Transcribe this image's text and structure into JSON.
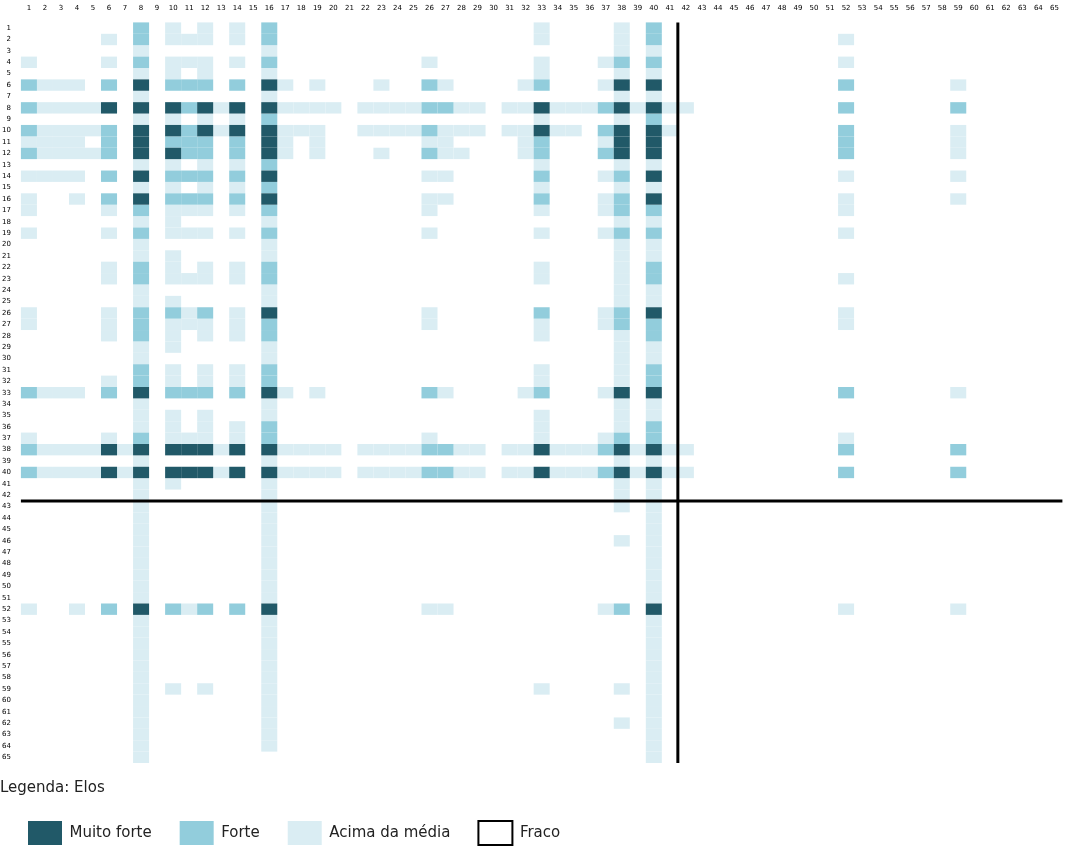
{
  "chart_data": {
    "type": "scatter",
    "legend_title": "Legenda: Elos",
    "legend": "bottom left",
    "marker": "square",
    "xlim": [
      0.5,
      65.5
    ],
    "ylim": [
      65.5,
      0.5
    ],
    "xticks": [
      1,
      2,
      3,
      4,
      5,
      6,
      7,
      8,
      9,
      10,
      11,
      12,
      13,
      14,
      15,
      16,
      17,
      18,
      19,
      20,
      21,
      22,
      23,
      24,
      25,
      26,
      27,
      28,
      29,
      30,
      31,
      32,
      33,
      34,
      35,
      36,
      37,
      38,
      39,
      40,
      41,
      42,
      43,
      44,
      45,
      46,
      47,
      48,
      49,
      50,
      51,
      52,
      53,
      54,
      55,
      56,
      57,
      58,
      59,
      60,
      61,
      62,
      63,
      64,
      65
    ],
    "yticks": [
      1,
      2,
      3,
      4,
      5,
      6,
      7,
      8,
      9,
      10,
      11,
      12,
      13,
      14,
      15,
      16,
      17,
      18,
      19,
      20,
      21,
      22,
      23,
      24,
      25,
      26,
      27,
      28,
      29,
      30,
      31,
      32,
      33,
      34,
      35,
      36,
      37,
      38,
      39,
      40,
      41,
      42,
      43,
      44,
      45,
      46,
      47,
      48,
      49,
      50,
      51,
      52,
      53,
      54,
      55,
      56,
      57,
      58,
      59,
      60,
      61,
      62,
      63,
      64,
      65
    ],
    "ref_lines": [
      {
        "axis": "x",
        "value": 41.5,
        "color": "#000000"
      },
      {
        "axis": "y",
        "value": 42.5,
        "color": "#000000"
      }
    ],
    "series": [
      {
        "name": "Muito forte",
        "color": "#215968",
        "x": [
          8,
          16,
          38,
          40,
          6,
          8,
          10,
          12,
          14,
          16,
          33,
          38,
          40,
          8,
          10,
          12,
          14,
          16,
          33,
          38,
          40,
          8,
          16,
          38,
          40,
          8,
          10,
          16,
          38,
          40,
          8,
          16,
          40,
          8,
          16,
          40,
          16,
          40,
          8,
          16,
          38,
          40,
          6,
          8,
          10,
          11,
          12,
          14,
          16,
          33,
          38,
          40,
          6,
          8,
          10,
          11,
          12,
          14,
          16,
          33,
          38,
          40,
          8,
          16,
          40
        ],
        "values": [
          6,
          6,
          6,
          6,
          8,
          8,
          8,
          8,
          8,
          8,
          8,
          8,
          8,
          10,
          10,
          10,
          10,
          10,
          10,
          10,
          10,
          11,
          11,
          11,
          11,
          12,
          12,
          12,
          12,
          12,
          14,
          14,
          14,
          16,
          16,
          16,
          26,
          26,
          33,
          33,
          33,
          33,
          38,
          38,
          38,
          38,
          38,
          38,
          38,
          38,
          38,
          38,
          40,
          40,
          40,
          40,
          40,
          40,
          40,
          40,
          40,
          40,
          52,
          52,
          52
        ]
      },
      {
        "name": "Forte",
        "color": "#92cddc",
        "x": [
          8,
          16,
          40,
          8,
          16,
          40,
          8,
          16,
          38,
          40,
          1,
          6,
          10,
          11,
          12,
          14,
          26,
          33,
          52,
          1,
          11,
          26,
          27,
          37,
          52,
          59,
          16,
          40,
          1,
          6,
          11,
          26,
          37,
          52,
          6,
          10,
          11,
          12,
          14,
          33,
          52,
          1,
          6,
          11,
          12,
          14,
          26,
          33,
          37,
          52,
          16,
          6,
          10,
          11,
          12,
          14,
          33,
          38,
          16,
          6,
          10,
          11,
          12,
          14,
          33,
          38,
          8,
          16,
          38,
          40,
          8,
          16,
          38,
          40,
          8,
          16,
          40,
          8,
          16,
          40,
          8,
          10,
          12,
          33,
          38,
          8,
          16,
          38,
          40,
          8,
          16,
          40,
          8,
          16,
          40,
          8,
          16,
          40,
          1,
          6,
          10,
          11,
          12,
          14,
          26,
          33,
          52,
          16,
          40,
          8,
          16,
          38,
          40,
          1,
          26,
          27,
          37,
          52,
          59,
          1,
          26,
          27,
          37,
          52,
          59,
          6,
          10,
          12,
          14,
          38
        ],
        "values": [
          1,
          1,
          1,
          2,
          2,
          2,
          4,
          4,
          4,
          4,
          6,
          6,
          6,
          6,
          6,
          6,
          6,
          6,
          6,
          8,
          8,
          8,
          8,
          8,
          8,
          8,
          9,
          9,
          10,
          10,
          10,
          10,
          10,
          10,
          11,
          11,
          11,
          11,
          11,
          11,
          11,
          12,
          12,
          12,
          12,
          12,
          12,
          12,
          12,
          12,
          13,
          14,
          14,
          14,
          14,
          14,
          14,
          14,
          15,
          16,
          16,
          16,
          16,
          16,
          16,
          16,
          17,
          17,
          17,
          17,
          19,
          19,
          19,
          19,
          22,
          22,
          22,
          23,
          23,
          23,
          26,
          26,
          26,
          26,
          26,
          27,
          27,
          27,
          27,
          28,
          28,
          28,
          31,
          31,
          31,
          32,
          32,
          32,
          33,
          33,
          33,
          33,
          33,
          33,
          33,
          33,
          33,
          36,
          36,
          37,
          37,
          37,
          37,
          38,
          38,
          38,
          38,
          38,
          38,
          40,
          40,
          40,
          40,
          40,
          40,
          52,
          52,
          52,
          52,
          52
        ]
      },
      {
        "name": "Acima da média",
        "color": "#daedf3",
        "x": [
          10,
          12,
          14,
          33,
          38,
          6,
          10,
          11,
          12,
          14,
          33,
          38,
          52,
          8,
          16,
          38,
          40,
          1,
          6,
          10,
          11,
          12,
          14,
          26,
          33,
          37,
          52,
          8,
          10,
          12,
          16,
          33,
          38,
          40,
          2,
          3,
          4,
          17,
          19,
          23,
          27,
          32,
          37,
          59,
          8,
          16,
          38,
          40,
          2,
          3,
          4,
          5,
          13,
          17,
          18,
          19,
          20,
          22,
          23,
          24,
          25,
          28,
          29,
          31,
          32,
          34,
          35,
          36,
          39,
          41,
          42,
          8,
          10,
          12,
          14,
          33,
          38,
          2,
          3,
          4,
          5,
          13,
          17,
          18,
          19,
          22,
          23,
          24,
          25,
          27,
          28,
          29,
          31,
          32,
          34,
          35,
          41,
          59,
          1,
          2,
          3,
          4,
          17,
          19,
          26,
          27,
          32,
          37,
          59,
          2,
          3,
          4,
          5,
          17,
          19,
          23,
          27,
          28,
          32,
          59,
          8,
          10,
          12,
          14,
          33,
          38,
          40,
          1,
          2,
          3,
          4,
          26,
          27,
          37,
          52,
          59,
          8,
          10,
          12,
          14,
          33,
          38,
          40,
          1,
          4,
          26,
          27,
          37,
          52,
          59,
          1,
          6,
          10,
          11,
          12,
          14,
          26,
          33,
          37,
          52,
          8,
          10,
          16,
          38,
          40,
          1,
          6,
          10,
          11,
          12,
          14,
          26,
          33,
          37,
          52,
          8,
          16,
          38,
          40,
          8,
          10,
          16,
          38,
          40,
          6,
          10,
          12,
          14,
          33,
          38,
          6,
          10,
          11,
          12,
          14,
          33,
          38,
          52,
          8,
          16,
          38,
          40,
          8,
          10,
          16,
          38,
          40,
          1,
          6,
          11,
          14,
          26,
          37,
          52,
          1,
          6,
          10,
          11,
          12,
          14,
          26,
          33,
          37,
          52,
          6,
          10,
          12,
          14,
          33,
          38,
          8,
          10,
          16,
          38,
          40,
          8,
          16,
          38,
          40,
          10,
          12,
          14,
          33,
          38,
          6,
          10,
          12,
          14,
          33,
          38,
          2,
          3,
          4,
          17,
          19,
          27,
          32,
          37,
          59,
          8,
          16,
          38,
          40,
          8,
          10,
          12,
          16,
          33,
          38,
          40,
          8,
          10,
          12,
          14,
          33,
          38,
          1,
          6,
          10,
          11,
          12,
          14,
          26,
          33,
          37,
          52,
          2,
          3,
          4,
          5,
          7,
          13,
          17,
          18,
          19,
          20,
          22,
          23,
          24,
          25,
          28,
          29,
          31,
          32,
          34,
          35,
          36,
          39,
          41,
          42,
          8,
          16,
          38,
          40,
          2,
          3,
          4,
          5,
          7,
          13,
          17,
          18,
          19,
          20,
          22,
          23,
          24,
          25,
          28,
          29,
          31,
          32,
          34,
          35,
          36,
          39,
          41,
          42,
          8,
          10,
          16,
          38,
          40,
          8,
          16,
          38,
          40,
          8,
          16,
          38,
          40,
          8,
          16,
          40,
          8,
          16,
          40,
          8,
          16,
          38,
          40,
          8,
          16,
          40,
          8,
          16,
          40,
          8,
          16,
          40,
          8,
          16,
          40,
          8,
          16,
          40,
          1,
          4,
          11,
          26,
          27,
          37,
          52,
          59,
          8,
          16,
          40,
          8,
          16,
          40,
          8,
          16,
          40,
          8,
          16,
          40,
          8,
          16,
          40,
          8,
          16,
          40,
          8,
          10,
          12,
          16,
          33,
          38,
          40,
          8,
          16,
          40,
          8,
          16,
          40,
          8,
          16,
          38,
          40,
          8,
          16,
          40,
          8,
          16,
          40,
          8,
          40
        ],
        "values": [
          1,
          1,
          1,
          1,
          1,
          2,
          2,
          2,
          2,
          2,
          2,
          2,
          2,
          3,
          3,
          3,
          3,
          4,
          4,
          4,
          4,
          4,
          4,
          4,
          4,
          4,
          4,
          5,
          5,
          5,
          5,
          5,
          5,
          5,
          6,
          6,
          6,
          6,
          6,
          6,
          6,
          6,
          6,
          6,
          7,
          7,
          7,
          7,
          8,
          8,
          8,
          8,
          8,
          8,
          8,
          8,
          8,
          8,
          8,
          8,
          8,
          8,
          8,
          8,
          8,
          8,
          8,
          8,
          8,
          8,
          8,
          9,
          9,
          9,
          9,
          9,
          9,
          10,
          10,
          10,
          10,
          10,
          10,
          10,
          10,
          10,
          10,
          10,
          10,
          10,
          10,
          10,
          10,
          10,
          10,
          10,
          10,
          10,
          11,
          11,
          11,
          11,
          11,
          11,
          11,
          11,
          11,
          11,
          11,
          12,
          12,
          12,
          12,
          12,
          12,
          12,
          12,
          12,
          12,
          12,
          13,
          13,
          13,
          13,
          13,
          13,
          13,
          14,
          14,
          14,
          14,
          14,
          14,
          14,
          14,
          14,
          15,
          15,
          15,
          15,
          15,
          15,
          15,
          16,
          16,
          16,
          16,
          16,
          16,
          16,
          17,
          17,
          17,
          17,
          17,
          17,
          17,
          17,
          17,
          17,
          18,
          18,
          18,
          18,
          18,
          19,
          19,
          19,
          19,
          19,
          19,
          19,
          19,
          19,
          19,
          20,
          20,
          20,
          20,
          21,
          21,
          21,
          21,
          21,
          22,
          22,
          22,
          22,
          22,
          22,
          23,
          23,
          23,
          23,
          23,
          23,
          23,
          23,
          24,
          24,
          24,
          24,
          25,
          25,
          25,
          25,
          25,
          26,
          26,
          26,
          26,
          26,
          26,
          26,
          27,
          27,
          27,
          27,
          27,
          27,
          27,
          27,
          27,
          27,
          28,
          28,
          28,
          28,
          28,
          28,
          29,
          29,
          29,
          29,
          29,
          30,
          30,
          30,
          30,
          31,
          31,
          31,
          31,
          31,
          32,
          32,
          32,
          32,
          32,
          32,
          33,
          33,
          33,
          33,
          33,
          33,
          33,
          33,
          33,
          34,
          34,
          34,
          34,
          35,
          35,
          35,
          35,
          35,
          35,
          35,
          36,
          36,
          36,
          36,
          36,
          36,
          37,
          37,
          37,
          37,
          37,
          37,
          37,
          37,
          37,
          37,
          38,
          38,
          38,
          38,
          38,
          38,
          38,
          38,
          38,
          38,
          38,
          38,
          38,
          38,
          38,
          38,
          38,
          38,
          38,
          38,
          38,
          38,
          38,
          38,
          39,
          39,
          39,
          39,
          40,
          40,
          40,
          40,
          40,
          40,
          40,
          40,
          40,
          40,
          40,
          40,
          40,
          40,
          40,
          40,
          40,
          40,
          40,
          40,
          40,
          40,
          40,
          40,
          41,
          41,
          41,
          41,
          41,
          42,
          42,
          42,
          42,
          43,
          43,
          43,
          43,
          44,
          44,
          44,
          45,
          45,
          45,
          46,
          46,
          46,
          46,
          47,
          47,
          47,
          48,
          48,
          48,
          49,
          49,
          49,
          50,
          50,
          50,
          51,
          51,
          51,
          52,
          52,
          52,
          52,
          52,
          52,
          52,
          52,
          53,
          53,
          53,
          54,
          54,
          54,
          55,
          55,
          55,
          56,
          56,
          56,
          57,
          57,
          57,
          58,
          58,
          58,
          59,
          59,
          59,
          59,
          59,
          59,
          59,
          60,
          60,
          60,
          61,
          61,
          61,
          62,
          62,
          62,
          62,
          63,
          63,
          63,
          64,
          64,
          64,
          65,
          65
        ]
      },
      {
        "name": "Fraco",
        "color": "#ffffff"
      }
    ]
  }
}
